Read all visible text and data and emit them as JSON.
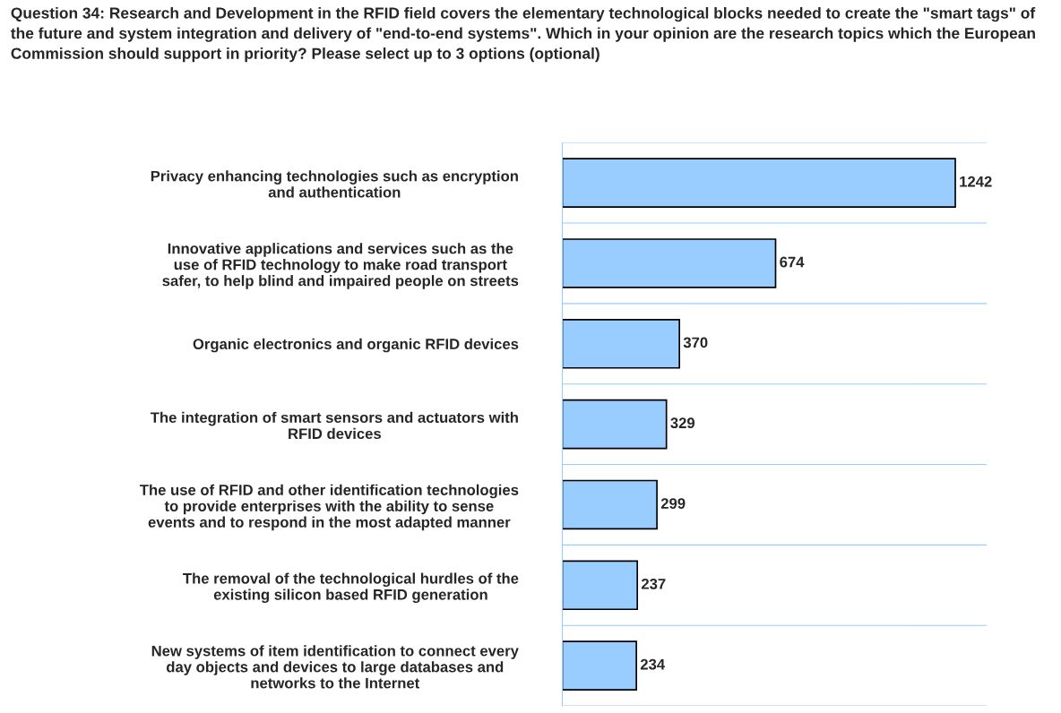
{
  "chart_data": {
    "type": "bar",
    "orientation": "horizontal",
    "title": "Question 34: Research and Development in the RFID field covers the elementary technological blocks needed to create the \"smart tags\" of the future and system integration and delivery of \"end-to-end systems\". Which in your opinion are the research topics which the European Commission should support in priority? Please select up to 3 options (optional)",
    "categories": [
      "Privacy enhancing technologies such as encryption\nand authentication",
      "Innovative applications and services such as the\nuse of RFID technology to make road transport\nsafer, to help blind and impaired people on streets",
      "Organic electronics and organic RFID devices",
      "The integration of smart sensors and actuators with\nRFID devices",
      "The use of RFID and other identification technologies\nto provide enterprises with the ability to sense\nevents and to respond in the most adapted manner",
      "The removal of the technological hurdles of the\nexisting silicon based RFID generation",
      "New systems of item identification to connect every\nday objects and devices to large databases and\nnetworks to the Internet"
    ],
    "values": [
      1242,
      674,
      370,
      329,
      299,
      237,
      234
    ],
    "color": "#99ccff",
    "data_labels": true,
    "grid": "y",
    "tick_labels": "y"
  }
}
